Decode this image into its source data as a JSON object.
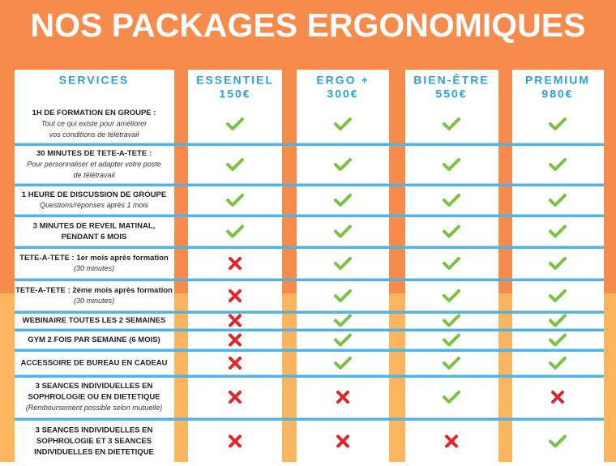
{
  "header": {
    "title": "NOS PACKAGES ERGONOMIQUES"
  },
  "table": {
    "services_heading": "SERVICES",
    "packages": [
      {
        "name": "ESSENTIEL",
        "price": "150€",
        "includes": [
          true,
          true,
          true,
          true,
          false,
          false,
          false,
          false,
          false,
          false,
          false
        ]
      },
      {
        "name": "ERGO +",
        "price": "300€",
        "includes": [
          true,
          true,
          true,
          true,
          true,
          true,
          true,
          true,
          true,
          false,
          false
        ]
      },
      {
        "name": "BIEN-ÊTRE",
        "price": "550€",
        "includes": [
          true,
          true,
          true,
          true,
          true,
          true,
          true,
          true,
          true,
          true,
          false
        ]
      },
      {
        "name": "PREMIUM",
        "price": "980€",
        "includes": [
          true,
          true,
          true,
          true,
          true,
          true,
          true,
          true,
          true,
          false,
          true
        ]
      }
    ],
    "rows": [
      {
        "title": [
          "1H DE FORMATION EN GROUPE :"
        ],
        "subtitle": [
          "Tout ce qui existe pour améliorer",
          "vos conditions de télétravail"
        ]
      },
      {
        "title": [
          "30 MINUTES DE TETE-A-TETE :"
        ],
        "subtitle": [
          "Pour personnaliser et adapter votre poste",
          "de télétravail"
        ]
      },
      {
        "title": [
          "1 HEURE DE DISCUSSION DE GROUPE"
        ],
        "subtitle": [
          "Questions/réponses après 1 mois"
        ]
      },
      {
        "title": [
          "3 MINUTES DE REVEIL MATINAL,",
          "PENDANT 6 MOIS"
        ],
        "subtitle": []
      },
      {
        "title": [
          "TETE-A-TETE : 1er mois après formation"
        ],
        "subtitle": [
          "(30 minutes)"
        ]
      },
      {
        "title": [
          "TETE-A-TETE  : 2ème mois après formation"
        ],
        "subtitle": [
          "(30 minutes)"
        ]
      },
      {
        "title": [
          "WEBINAIRE TOUTES LES 2 SEMAINES"
        ],
        "subtitle": []
      },
      {
        "title": [
          "GYM 2 FOIS PAR SEMAINE (6 MOIS)"
        ],
        "subtitle": []
      },
      {
        "title": [
          "ACCESSOIRE DE BUREAU EN CADEAU"
        ],
        "subtitle": []
      },
      {
        "title": [
          "3  SEANCES INDIVIDUELLES EN",
          "SOPHROLOGIE OU EN DIETETIQUE"
        ],
        "subtitle": [
          "(Remboursement possible selon mutuelle)"
        ]
      },
      {
        "title": [
          "3 SEANCES INDIVIDUELLES EN",
          "SOPHROLOGIE ET 3 SEANCES",
          "INDIVIDUELLES EN DIETETIQUE"
        ],
        "subtitle": []
      }
    ]
  }
}
